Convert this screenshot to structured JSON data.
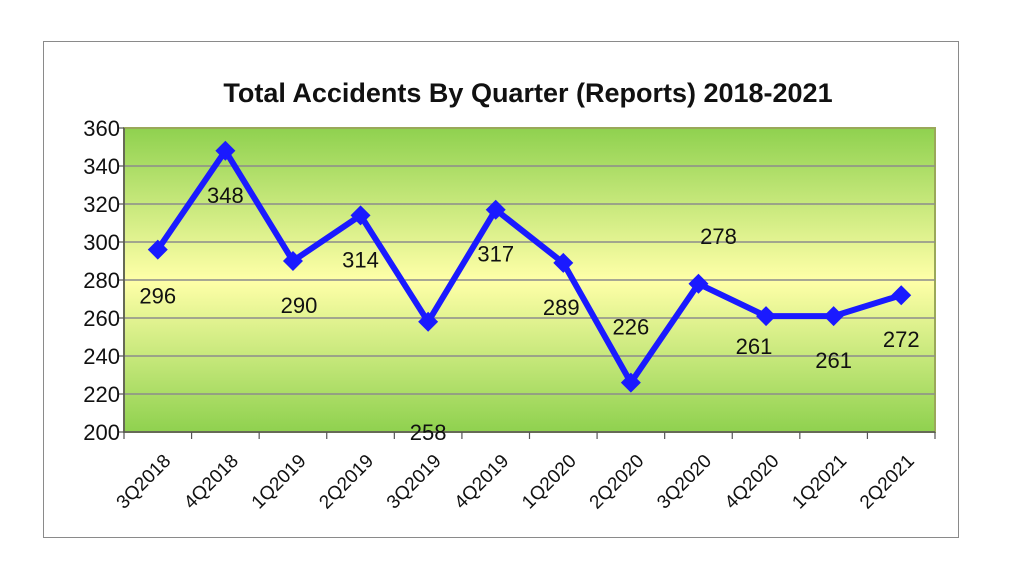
{
  "chart_data": {
    "type": "line",
    "title": "Total Accidents By Quarter (Reports) 2018-2021",
    "xlabel": "",
    "ylabel": "",
    "categories": [
      "3Q2018",
      "4Q2018",
      "1Q2019",
      "2Q2019",
      "3Q2019",
      "4Q2019",
      "1Q2020",
      "2Q2020",
      "3Q2020",
      "4Q2020",
      "1Q2021",
      "2Q2021"
    ],
    "series": [
      {
        "values": [
          296,
          348,
          290,
          314,
          258,
          317,
          289,
          226,
          278,
          261,
          261,
          272
        ]
      }
    ],
    "ylim": [
      200,
      360
    ],
    "yticks": [
      "200",
      "220",
      "240",
      "260",
      "280",
      "300",
      "320",
      "340",
      "360"
    ],
    "data_labels": [
      "296",
      "348",
      "290",
      "314",
      "258",
      "317",
      "289",
      "226",
      "278",
      "261",
      "261",
      "272"
    ],
    "grid": true,
    "line_color": "#1a1aff",
    "plot_gradient": [
      "#8fd14f",
      "#ffffa8",
      "#8fd14f"
    ]
  }
}
